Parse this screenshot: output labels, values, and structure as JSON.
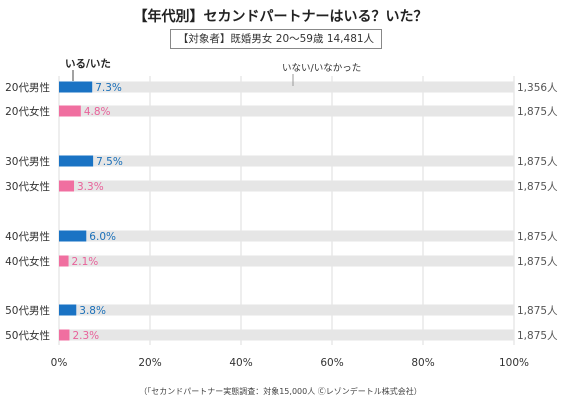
{
  "chart_data": {
    "type": "bar",
    "orientation": "horizontal",
    "stacked": true,
    "title": "【年代別】セカンドパートナーはいる？いた？",
    "subtitle": "【対象者】既婚男女 20～59歳 14,481人",
    "categories": [
      "20代男性",
      "20代女性",
      "30代男性",
      "30代女性",
      "40代男性",
      "40代女性",
      "50代男性",
      "50代女性"
    ],
    "series": [
      {
        "name": "いる/いた",
        "values": [
          7.3,
          4.8,
          7.5,
          3.3,
          6.0,
          2.1,
          3.8,
          2.3
        ]
      },
      {
        "name": "いない/いなかった",
        "values": [
          92.7,
          95.2,
          92.5,
          96.7,
          94.0,
          97.9,
          96.2,
          97.7
        ]
      }
    ],
    "value_labels": [
      "7.3%",
      "4.8%",
      "7.5%",
      "3.3%",
      "6.0%",
      "2.1%",
      "3.8%",
      "2.3%"
    ],
    "sample_sizes": [
      "1,356人",
      "1,875人",
      "1,875人",
      "1,875人",
      "1,875人",
      "1,875人",
      "1,875人",
      "1,875人"
    ],
    "xlim": [
      0,
      100
    ],
    "xticks": [
      "0%",
      "20%",
      "40%",
      "60%",
      "80%",
      "100%"
    ],
    "grid": true,
    "colors": {
      "male": "#1a73c4",
      "female": "#f06fa0",
      "rest": "#e6e6e6",
      "grid": "#dddddd",
      "male_label": "#1a6fb8",
      "female_label": "#e8629a"
    }
  },
  "source": "（「セカンドパートナー実態調査：対象15,000人 Ⓒレゾンデートル株式会社）"
}
